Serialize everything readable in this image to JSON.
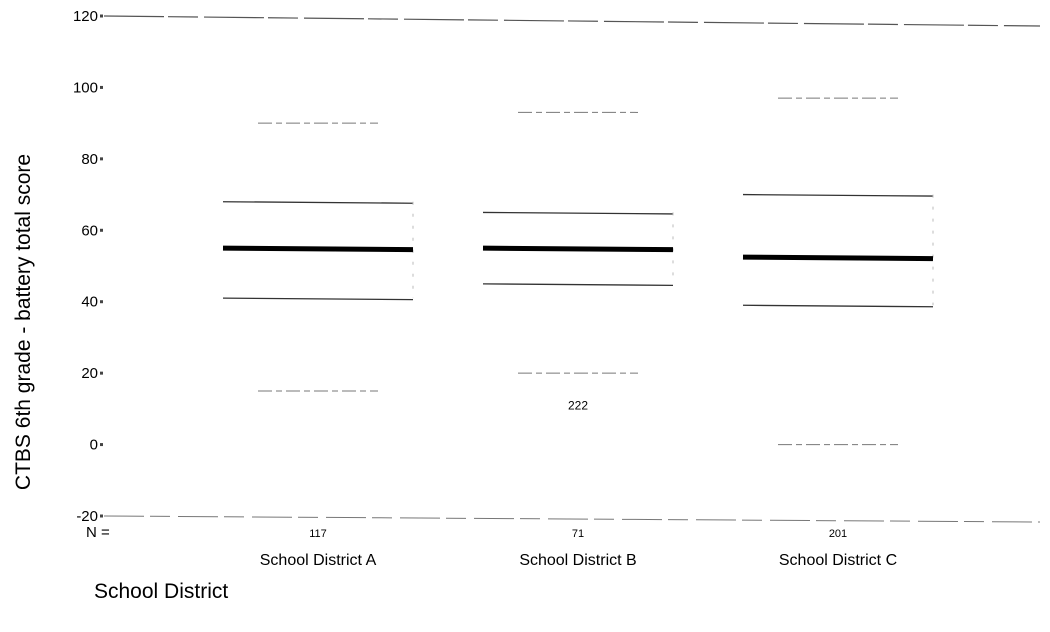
{
  "chart_data": {
    "type": "boxplot",
    "ylabel": "CTBS 6th grade - battery total score",
    "xlabel": "School District",
    "ylim": [
      -20,
      120
    ],
    "yticks": [
      120,
      100,
      80,
      60,
      40,
      20,
      0,
      -20
    ],
    "n_prefix": "N =",
    "categories": [
      "School District A",
      "School District B",
      "School District C"
    ],
    "n": [
      "117",
      "71",
      "201"
    ],
    "boxes": [
      {
        "min": 15,
        "q1": 41,
        "median": 55,
        "q3": 68,
        "max": 90
      },
      {
        "min": 20,
        "q1": 45,
        "median": 55,
        "q3": 65,
        "max": 93
      },
      {
        "min": 0,
        "q1": 39,
        "median": 52.5,
        "q3": 70,
        "max": 97
      }
    ],
    "outliers": [
      {
        "category": "School District B",
        "value": 11,
        "label": "222"
      }
    ],
    "colors": {
      "median": "#000000",
      "lines": "#000000",
      "background": "#ffffff"
    }
  }
}
